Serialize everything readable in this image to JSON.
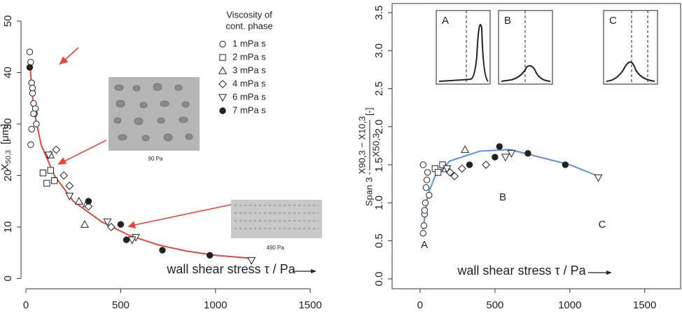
{
  "chart_data": [
    {
      "type": "scatter",
      "box": false,
      "y_label": {
        "main": "X",
        "sub": "50,3",
        "unit": "[μm]"
      },
      "x_annotation": "wall shear stress  τ / Pa",
      "legend_title": [
        "Viscosity of",
        "cont. phase"
      ],
      "image_labels": [
        "90 Pa",
        "490 Pa"
      ],
      "xlim": [
        -26,
        1544
      ],
      "ylim": [
        -2,
        53
      ],
      "xticks": [
        0,
        500,
        1000,
        1500
      ],
      "yticks": [
        0,
        10,
        20,
        30,
        40,
        50
      ],
      "series": [
        {
          "name": "1 mPa s",
          "marker": "circle",
          "color": "#222",
          "x": [
            20,
            25,
            30,
            35,
            40,
            45,
            30,
            25,
            50,
            55,
            35,
            40
          ],
          "values": [
            44,
            42,
            38,
            36,
            34,
            32,
            29,
            26,
            33,
            30,
            37,
            32
          ]
        },
        {
          "name": "2 mPa s",
          "marker": "square",
          "color": "#222",
          "x": [
            90,
            110,
            150,
            130
          ],
          "values": [
            20.5,
            18.5,
            19,
            21
          ]
        },
        {
          "name": "3 mPa s",
          "marker": "triangle",
          "color": "#222",
          "x": [
            280,
            320,
            310,
            130
          ],
          "values": [
            15,
            14.5,
            10.5,
            24
          ]
        },
        {
          "name": "4 mPa s",
          "marker": "diamond",
          "color": "#222",
          "x": [
            160,
            200,
            230,
            330,
            450
          ],
          "values": [
            25,
            20,
            18,
            14,
            10
          ]
        },
        {
          "name": "6 mPa s",
          "marker": "triangle-down",
          "color": "#222",
          "x": [
            120,
            230,
            430,
            580,
            560,
            1190
          ],
          "values": [
            24,
            16,
            11,
            8,
            7.5,
            3.5
          ]
        },
        {
          "name": "7 mPa s",
          "marker": "filled-circle",
          "color": "#222",
          "x": [
            20,
            330,
            500,
            530,
            720,
            970
          ],
          "values": [
            41,
            15,
            10.5,
            7.5,
            5.5,
            4.5
          ]
        }
      ],
      "fit": {
        "color": "#e8453c",
        "x": [
          20,
          40,
          80,
          150,
          250,
          400,
          550,
          700,
          850,
          1000,
          1190
        ],
        "values": [
          42,
          33,
          26,
          20,
          15,
          11,
          8.3,
          6.5,
          5.3,
          4.5,
          3.9
        ]
      }
    },
    {
      "type": "scatter",
      "box": true,
      "y_label": {
        "pre": "Span 3 -",
        "num": "X90,3 − X10,3",
        "den": "X50,3",
        "unit": "[-]"
      },
      "x_annotation": "wall shear stress  τ / Pa",
      "point_labels": [
        "A",
        "B",
        "C"
      ],
      "insets": [
        "A",
        "B",
        "C"
      ],
      "xlim": [
        -187,
        1740
      ],
      "ylim": [
        -0.13,
        3.62
      ],
      "xticks": [
        0,
        500,
        1000,
        1500
      ],
      "yticks": [
        {
          "value": 0,
          "label": "0.0"
        },
        0.5,
        {
          "value": 1,
          "label": "1.0"
        },
        1.5,
        {
          "value": 2,
          "label": "2.0"
        },
        2.5,
        {
          "value": 3,
          "label": "3.0"
        },
        3.5
      ],
      "series": [
        {
          "marker": "circle",
          "color": "#222",
          "x": [
            20,
            25,
            30,
            35,
            40,
            45,
            20,
            50,
            60,
            30
          ],
          "values": [
            0.6,
            0.7,
            0.85,
            1.0,
            1.2,
            1.3,
            1.5,
            1.4,
            1.1,
            0.9
          ]
        },
        {
          "marker": "square",
          "color": "#222",
          "x": [
            100,
            150,
            120
          ],
          "values": [
            1.45,
            1.5,
            1.4
          ]
        },
        {
          "marker": "triangle",
          "color": "#222",
          "x": [
            300,
            170
          ],
          "values": [
            1.7,
            1.45
          ]
        },
        {
          "marker": "diamond",
          "color": "#222",
          "x": [
            200,
            230,
            440,
            280
          ],
          "values": [
            1.4,
            1.35,
            1.5,
            1.45
          ]
        },
        {
          "marker": "triangle-down",
          "color": "#222",
          "x": [
            180,
            570,
            610,
            1190
          ],
          "values": [
            1.45,
            1.6,
            1.65,
            1.33
          ]
        },
        {
          "marker": "filled-circle",
          "color": "#222",
          "x": [
            330,
            500,
            530,
            720,
            970
          ],
          "values": [
            1.5,
            1.6,
            1.74,
            1.65,
            1.5
          ]
        }
      ],
      "fit": {
        "color": "#5b8fd9",
        "x": [
          20,
          50,
          100,
          200,
          400,
          600,
          800,
          1000,
          1190
        ],
        "values": [
          0.65,
          1.1,
          1.35,
          1.55,
          1.68,
          1.7,
          1.6,
          1.5,
          1.35
        ]
      }
    }
  ]
}
